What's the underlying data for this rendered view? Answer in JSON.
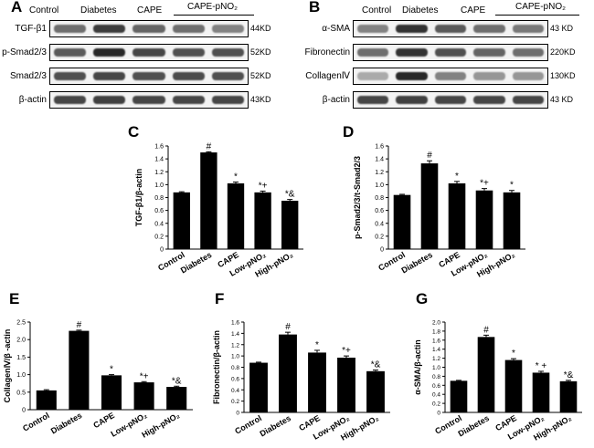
{
  "panels": {
    "A": "A",
    "B": "B",
    "C": "C",
    "D": "D",
    "E": "E",
    "F": "F",
    "G": "G"
  },
  "blot_A": {
    "groups": [
      "Control",
      "Diabetes",
      "CAPE"
    ],
    "group_combo": "CAPE-pNO₂",
    "rows": [
      {
        "label": "TGF-β1",
        "kd": "44KD",
        "intensity": [
          0.55,
          0.8,
          0.6,
          0.55,
          0.45
        ]
      },
      {
        "label": "p-Smad2/3",
        "kd": "52KD",
        "intensity": [
          0.65,
          0.9,
          0.75,
          0.7,
          0.7
        ]
      },
      {
        "label": "Smad2/3",
        "kd": "52KD",
        "intensity": [
          0.7,
          0.75,
          0.7,
          0.72,
          0.7
        ]
      },
      {
        "label": "β-actin",
        "kd": "43KD",
        "intensity": [
          0.75,
          0.78,
          0.75,
          0.75,
          0.75
        ]
      }
    ]
  },
  "blot_B": {
    "groups": [
      "Control",
      "Diabetes",
      "CAPE"
    ],
    "group_combo": "CAPE-pNO₂",
    "rows": [
      {
        "label": "α-SMA",
        "kd": "43 KD",
        "intensity": [
          0.45,
          0.85,
          0.65,
          0.55,
          0.5
        ]
      },
      {
        "label": "Fibronectin",
        "kd": "220KD",
        "intensity": [
          0.55,
          0.85,
          0.7,
          0.6,
          0.55
        ]
      },
      {
        "label": "CollagenⅣ",
        "kd": "130KD",
        "intensity": [
          0.25,
          0.9,
          0.45,
          0.35,
          0.35
        ]
      },
      {
        "label": "β-actin",
        "kd": "43 KD",
        "intensity": [
          0.75,
          0.78,
          0.75,
          0.75,
          0.75
        ]
      }
    ]
  },
  "chart_data": [
    {
      "panel": "C",
      "type": "bar",
      "ylabel": "TGF-β1/β-actin",
      "ylim": [
        0,
        1.6
      ],
      "yticks": [
        "0",
        "0.2",
        "0.4",
        "0.6",
        "0.8",
        "1.0",
        "1.2",
        "1.4",
        "1.6"
      ],
      "categories": [
        "Control",
        "Diabetes",
        "CAPE",
        "Low-pNO₂",
        "High-pNO₂"
      ],
      "values": [
        0.88,
        1.5,
        1.02,
        0.88,
        0.75
      ],
      "errors": [
        0.01,
        0.01,
        0.02,
        0.02,
        0.02
      ],
      "annotations": [
        "",
        "#",
        "*",
        "*+",
        "*&"
      ]
    },
    {
      "panel": "D",
      "type": "bar",
      "ylabel": "p-Smad2/3/t-Smad2/3",
      "ylim": [
        0,
        1.6
      ],
      "yticks": [
        "0",
        "0.2",
        "0.4",
        "0.6",
        "0.8",
        "1.0",
        "1.2",
        "1.4",
        "1.6"
      ],
      "categories": [
        "Control",
        "Diabetes",
        "CAPE",
        "Low-pNO₂",
        "High-pNO₂"
      ],
      "values": [
        0.84,
        1.33,
        1.02,
        0.91,
        0.88
      ],
      "errors": [
        0.01,
        0.04,
        0.03,
        0.03,
        0.03
      ],
      "annotations": [
        "",
        "#",
        "*",
        "*+",
        "*"
      ]
    },
    {
      "panel": "E",
      "type": "bar",
      "ylabel": "CollagenⅣ/β -actin",
      "ylim": [
        0,
        2.5
      ],
      "yticks": [
        "0",
        "0.5",
        "1.0",
        "1.5",
        "2.0",
        "2.5"
      ],
      "categories": [
        "Control",
        "Diabetes",
        "CAPE",
        "Low-pNO₂",
        "High-pNO₂"
      ],
      "values": [
        0.55,
        2.25,
        0.98,
        0.78,
        0.65
      ],
      "errors": [
        0.02,
        0.02,
        0.02,
        0.02,
        0.02
      ],
      "annotations": [
        "",
        "#",
        "*",
        "*+",
        "*&"
      ]
    },
    {
      "panel": "F",
      "type": "bar",
      "ylabel": "Fibronectin/β-actin",
      "ylim": [
        0,
        1.6
      ],
      "yticks": [
        "0",
        "0.2",
        "0.4",
        "0.6",
        "0.8",
        "1.0",
        "1.2",
        "1.4",
        "1.6"
      ],
      "categories": [
        "Control",
        "Diabetes",
        "CAPE",
        "Low-pNO₂",
        "High-pNO₂"
      ],
      "values": [
        0.88,
        1.38,
        1.06,
        0.97,
        0.73
      ],
      "errors": [
        0.01,
        0.04,
        0.04,
        0.03,
        0.02
      ],
      "annotations": [
        "",
        "#",
        "*",
        "*+",
        "*&"
      ]
    },
    {
      "panel": "G",
      "type": "bar",
      "ylabel": "α-SMA/β-actin",
      "ylim": [
        0,
        2.0
      ],
      "yticks": [
        "0",
        "0.2",
        "0.4",
        "0.6",
        "0.8",
        "1.0",
        "1.2",
        "1.4",
        "1.6",
        "1.8",
        "2.0"
      ],
      "categories": [
        "Control",
        "Diabetes",
        "CAPE",
        "Low-pNO₂",
        "High-pNO₂"
      ],
      "values": [
        0.7,
        1.67,
        1.16,
        0.88,
        0.69
      ],
      "errors": [
        0.01,
        0.04,
        0.03,
        0.03,
        0.02
      ],
      "annotations": [
        "",
        "#",
        "*",
        "* +",
        "*&"
      ]
    }
  ]
}
